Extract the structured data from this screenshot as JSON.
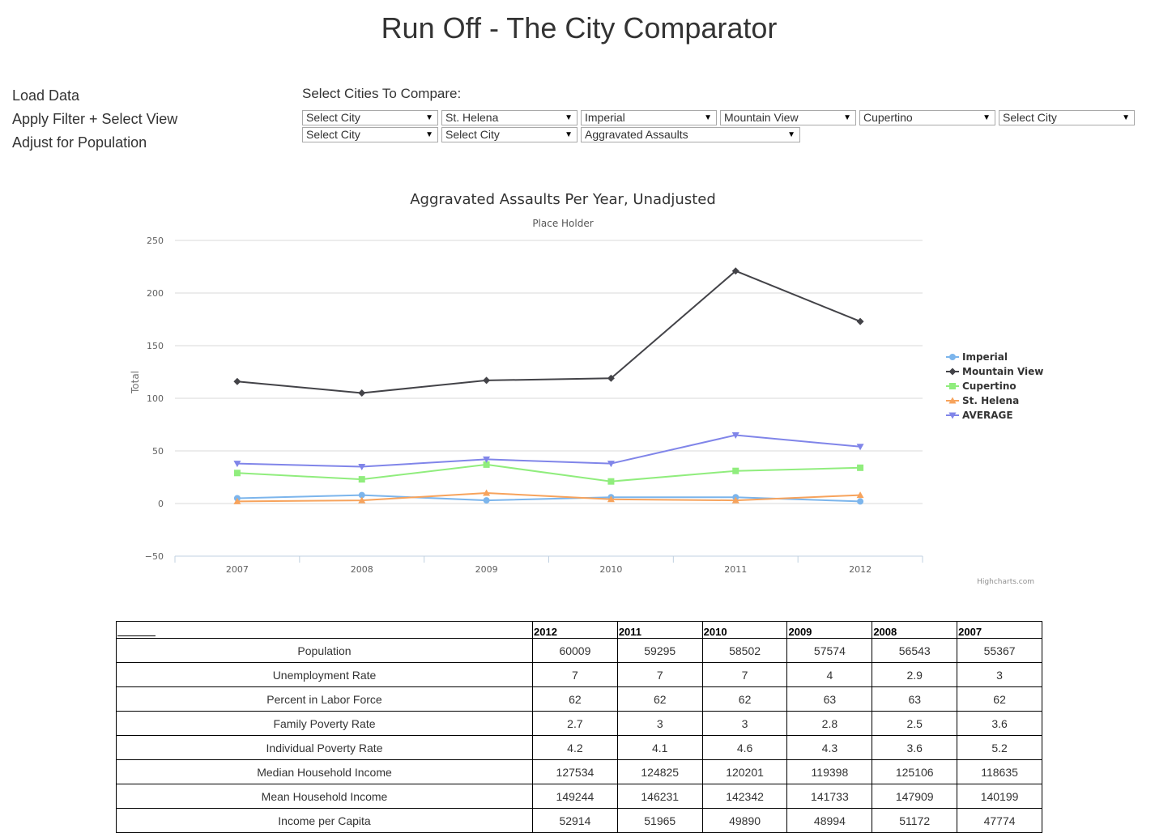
{
  "header": {
    "title": "Run Off - The City Comparator"
  },
  "menu": {
    "load_data": "Load Data",
    "apply_filter": "Apply Filter + Select View",
    "adjust_population": "Adjust for Population"
  },
  "controls": {
    "compare_label": "Select Cities To Compare:",
    "row1": [
      "Select City",
      "St. Helena",
      "Imperial",
      "Mountain View",
      "Cupertino",
      "Select City"
    ],
    "row2": [
      "Select City",
      "Select City"
    ],
    "metric": "Aggravated Assaults"
  },
  "chart_data": {
    "type": "line",
    "title": "Aggravated Assaults Per Year, Unadjusted",
    "subtitle": "Place Holder",
    "xlabel": "",
    "ylabel": "Total",
    "categories": [
      "2007",
      "2008",
      "2009",
      "2010",
      "2011",
      "2012"
    ],
    "ylim": [
      -50,
      250
    ],
    "yticks": [
      -50,
      0,
      50,
      100,
      150,
      200,
      250
    ],
    "grid": true,
    "legend_position": "right",
    "credits": "Highcharts.com",
    "series": [
      {
        "name": "Imperial",
        "color": "#7cb5ec",
        "marker": "circle",
        "values": [
          5,
          8,
          3,
          6,
          6,
          2
        ]
      },
      {
        "name": "Mountain View",
        "color": "#434348",
        "marker": "diamond",
        "values": [
          116,
          105,
          117,
          119,
          221,
          173
        ]
      },
      {
        "name": "Cupertino",
        "color": "#90ed7d",
        "marker": "square",
        "values": [
          29,
          23,
          37,
          21,
          31,
          34
        ]
      },
      {
        "name": "St. Helena",
        "color": "#f7a35c",
        "marker": "triangle",
        "values": [
          2,
          3,
          10,
          4,
          3,
          8
        ]
      },
      {
        "name": "AVERAGE",
        "color": "#8085e9",
        "marker": "triangle-down",
        "values": [
          38,
          35,
          42,
          38,
          65,
          54
        ]
      }
    ]
  },
  "table": {
    "years": [
      "2012",
      "2011",
      "2010",
      "2009",
      "2008",
      "2007"
    ],
    "rows": [
      {
        "label": "Population",
        "values": [
          "60009",
          "59295",
          "58502",
          "57574",
          "56543",
          "55367"
        ]
      },
      {
        "label": "Unemployment Rate",
        "values": [
          "7",
          "7",
          "7",
          "4",
          "2.9",
          "3"
        ]
      },
      {
        "label": "Percent in Labor Force",
        "values": [
          "62",
          "62",
          "62",
          "63",
          "63",
          "62"
        ]
      },
      {
        "label": "Family Poverty Rate",
        "values": [
          "2.7",
          "3",
          "3",
          "2.8",
          "2.5",
          "3.6"
        ]
      },
      {
        "label": "Individual Poverty Rate",
        "values": [
          "4.2",
          "4.1",
          "4.6",
          "4.3",
          "3.6",
          "5.2"
        ]
      },
      {
        "label": "Median Household Income",
        "values": [
          "127534",
          "124825",
          "120201",
          "119398",
          "125106",
          "118635"
        ]
      },
      {
        "label": "Mean Household Income",
        "values": [
          "149244",
          "146231",
          "142342",
          "141733",
          "147909",
          "140199"
        ]
      },
      {
        "label": "Income per Capita",
        "values": [
          "52914",
          "51965",
          "49890",
          "48994",
          "51172",
          "47774"
        ]
      }
    ]
  }
}
